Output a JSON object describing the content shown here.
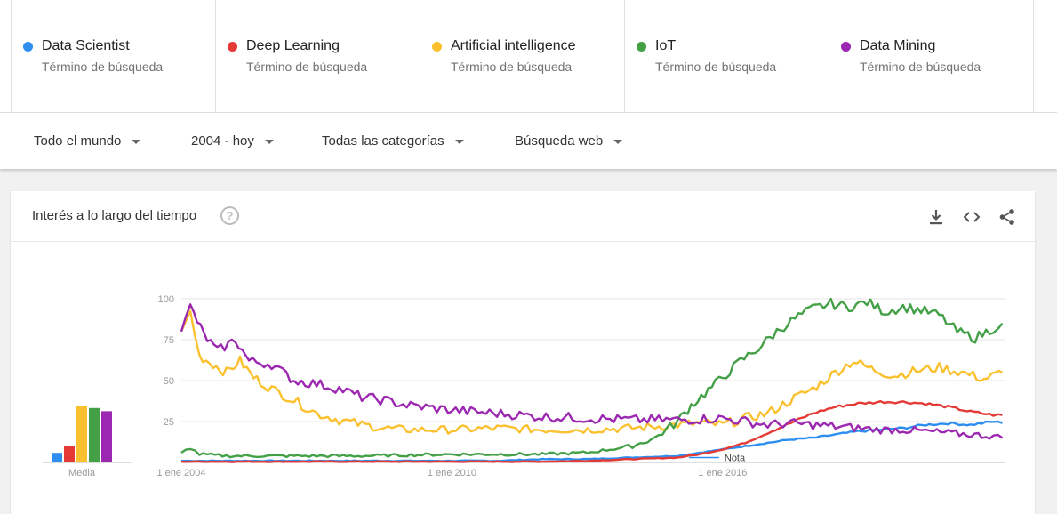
{
  "terms": [
    {
      "name": "Data Scientist",
      "type": "Término de búsqueda",
      "color": "#2d8ef0"
    },
    {
      "name": "Deep Learning",
      "type": "Término de búsqueda",
      "color": "#e53935"
    },
    {
      "name": "Artificial intelligence",
      "type": "Término de búsqueda",
      "color": "#fbc02d"
    },
    {
      "name": "IoT",
      "type": "Término de búsqueda",
      "color": "#43a047"
    },
    {
      "name": "Data Mining",
      "type": "Término de búsqueda",
      "color": "#9c27b0"
    }
  ],
  "filters": {
    "region": "Todo el mundo",
    "period": "2004 - hoy",
    "category": "Todas las categorías",
    "search_type": "Búsqueda web"
  },
  "card": {
    "title": "Interés a lo largo del tiempo",
    "help_icon": "help-circle-icon",
    "tools": [
      "download-icon",
      "embed-code-icon",
      "share-icon"
    ]
  },
  "chart_data": {
    "type": "line",
    "yticks": [
      25,
      50,
      75,
      100
    ],
    "ylim": [
      0,
      100
    ],
    "xlim": [
      2004,
      2022.25
    ],
    "xticks": [
      {
        "x": 2004,
        "label": "1 ene 2004"
      },
      {
        "x": 2010,
        "label": "1 ene 2010"
      },
      {
        "x": 2016,
        "label": "1 ene 2016"
      }
    ],
    "note": {
      "x": 2016,
      "y": 3,
      "label": "Nota"
    },
    "averages": {
      "label": "Media",
      "values": [
        6,
        10,
        35,
        34,
        32
      ]
    },
    "series": [
      {
        "name": "Data Scientist",
        "color": "#2d8ef0",
        "points": [
          [
            2004,
            1
          ],
          [
            2006,
            1
          ],
          [
            2008,
            1
          ],
          [
            2010,
            1
          ],
          [
            2011,
            1
          ],
          [
            2012,
            2
          ],
          [
            2013,
            2
          ],
          [
            2014,
            3
          ],
          [
            2015,
            4
          ],
          [
            2015.5,
            6
          ],
          [
            2016,
            8
          ],
          [
            2016.5,
            10
          ],
          [
            2017,
            12
          ],
          [
            2017.5,
            14
          ],
          [
            2018,
            15
          ],
          [
            2018.5,
            17
          ],
          [
            2019,
            19
          ],
          [
            2019.5,
            20
          ],
          [
            2020,
            21
          ],
          [
            2020.5,
            23
          ],
          [
            2021,
            24
          ],
          [
            2021.5,
            23
          ],
          [
            2022,
            25
          ],
          [
            2022.2,
            24
          ]
        ]
      },
      {
        "name": "Deep Learning",
        "color": "#e53935",
        "points": [
          [
            2004,
            0.5
          ],
          [
            2008,
            0.5
          ],
          [
            2012,
            0.5
          ],
          [
            2013,
            1
          ],
          [
            2014,
            2
          ],
          [
            2015,
            3
          ],
          [
            2015.5,
            5
          ],
          [
            2016,
            8
          ],
          [
            2016.5,
            12
          ],
          [
            2017,
            18
          ],
          [
            2017.5,
            24
          ],
          [
            2018,
            30
          ],
          [
            2018.5,
            34
          ],
          [
            2019,
            36
          ],
          [
            2019.5,
            37
          ],
          [
            2020,
            37
          ],
          [
            2020.5,
            36
          ],
          [
            2021,
            34
          ],
          [
            2021.5,
            31
          ],
          [
            2022,
            29
          ],
          [
            2022.2,
            29
          ]
        ]
      },
      {
        "name": "Artificial intelligence",
        "color": "#fbc02d",
        "points": [
          [
            2004,
            80
          ],
          [
            2004.2,
            92
          ],
          [
            2004.4,
            65
          ],
          [
            2004.7,
            60
          ],
          [
            2005,
            55
          ],
          [
            2005.3,
            62
          ],
          [
            2005.6,
            52
          ],
          [
            2006,
            45
          ],
          [
            2006.5,
            38
          ],
          [
            2007,
            30
          ],
          [
            2007.5,
            26
          ],
          [
            2008,
            23
          ],
          [
            2008.5,
            21
          ],
          [
            2009,
            20
          ],
          [
            2010,
            20
          ],
          [
            2011,
            21
          ],
          [
            2012,
            20
          ],
          [
            2013,
            20
          ],
          [
            2014,
            21
          ],
          [
            2014.5,
            22
          ],
          [
            2015,
            23
          ],
          [
            2015.5,
            24
          ],
          [
            2016,
            23
          ],
          [
            2016.5,
            27
          ],
          [
            2017,
            30
          ],
          [
            2017.5,
            38
          ],
          [
            2018,
            45
          ],
          [
            2018.5,
            55
          ],
          [
            2018.9,
            62
          ],
          [
            2019.3,
            57
          ],
          [
            2019.8,
            53
          ],
          [
            2020.3,
            56
          ],
          [
            2020.8,
            58
          ],
          [
            2021.3,
            55
          ],
          [
            2021.8,
            51
          ],
          [
            2022.2,
            55
          ]
        ]
      },
      {
        "name": "IoT",
        "color": "#43a047",
        "points": [
          [
            2004,
            6
          ],
          [
            2004.2,
            9
          ],
          [
            2004.4,
            5
          ],
          [
            2005,
            4
          ],
          [
            2006,
            4
          ],
          [
            2008,
            4
          ],
          [
            2010,
            5
          ],
          [
            2012,
            5
          ],
          [
            2013,
            6
          ],
          [
            2013.5,
            8
          ],
          [
            2014,
            10
          ],
          [
            2014.5,
            15
          ],
          [
            2015,
            25
          ],
          [
            2015.3,
            35
          ],
          [
            2015.6,
            42
          ],
          [
            2016,
            52
          ],
          [
            2016.4,
            62
          ],
          [
            2016.8,
            70
          ],
          [
            2017.2,
            80
          ],
          [
            2017.6,
            88
          ],
          [
            2018,
            94
          ],
          [
            2018.4,
            97
          ],
          [
            2018.8,
            95
          ],
          [
            2019.2,
            98
          ],
          [
            2019.6,
            92
          ],
          [
            2020,
            95
          ],
          [
            2020.4,
            93
          ],
          [
            2020.8,
            90
          ],
          [
            2021.2,
            80
          ],
          [
            2021.6,
            76
          ],
          [
            2022,
            82
          ],
          [
            2022.2,
            85
          ]
        ]
      },
      {
        "name": "Data Mining",
        "color": "#9c27b0",
        "points": [
          [
            2004,
            80
          ],
          [
            2004.2,
            95
          ],
          [
            2004.5,
            78
          ],
          [
            2004.8,
            68
          ],
          [
            2005.2,
            75
          ],
          [
            2005.5,
            62
          ],
          [
            2006,
            60
          ],
          [
            2006.5,
            50
          ],
          [
            2007,
            48
          ],
          [
            2007.5,
            45
          ],
          [
            2008,
            40
          ],
          [
            2008.5,
            38
          ],
          [
            2009,
            35
          ],
          [
            2010,
            32
          ],
          [
            2011,
            30
          ],
          [
            2012,
            28
          ],
          [
            2013,
            27
          ],
          [
            2014,
            26
          ],
          [
            2015,
            26
          ],
          [
            2016,
            27
          ],
          [
            2016.5,
            25
          ],
          [
            2017,
            23
          ],
          [
            2017.5,
            24
          ],
          [
            2018,
            23
          ],
          [
            2018.5,
            22
          ],
          [
            2019,
            21
          ],
          [
            2019.5,
            20
          ],
          [
            2020,
            20
          ],
          [
            2020.5,
            19
          ],
          [
            2021,
            18
          ],
          [
            2021.5,
            17
          ],
          [
            2022,
            16
          ],
          [
            2022.2,
            15
          ]
        ]
      }
    ]
  }
}
